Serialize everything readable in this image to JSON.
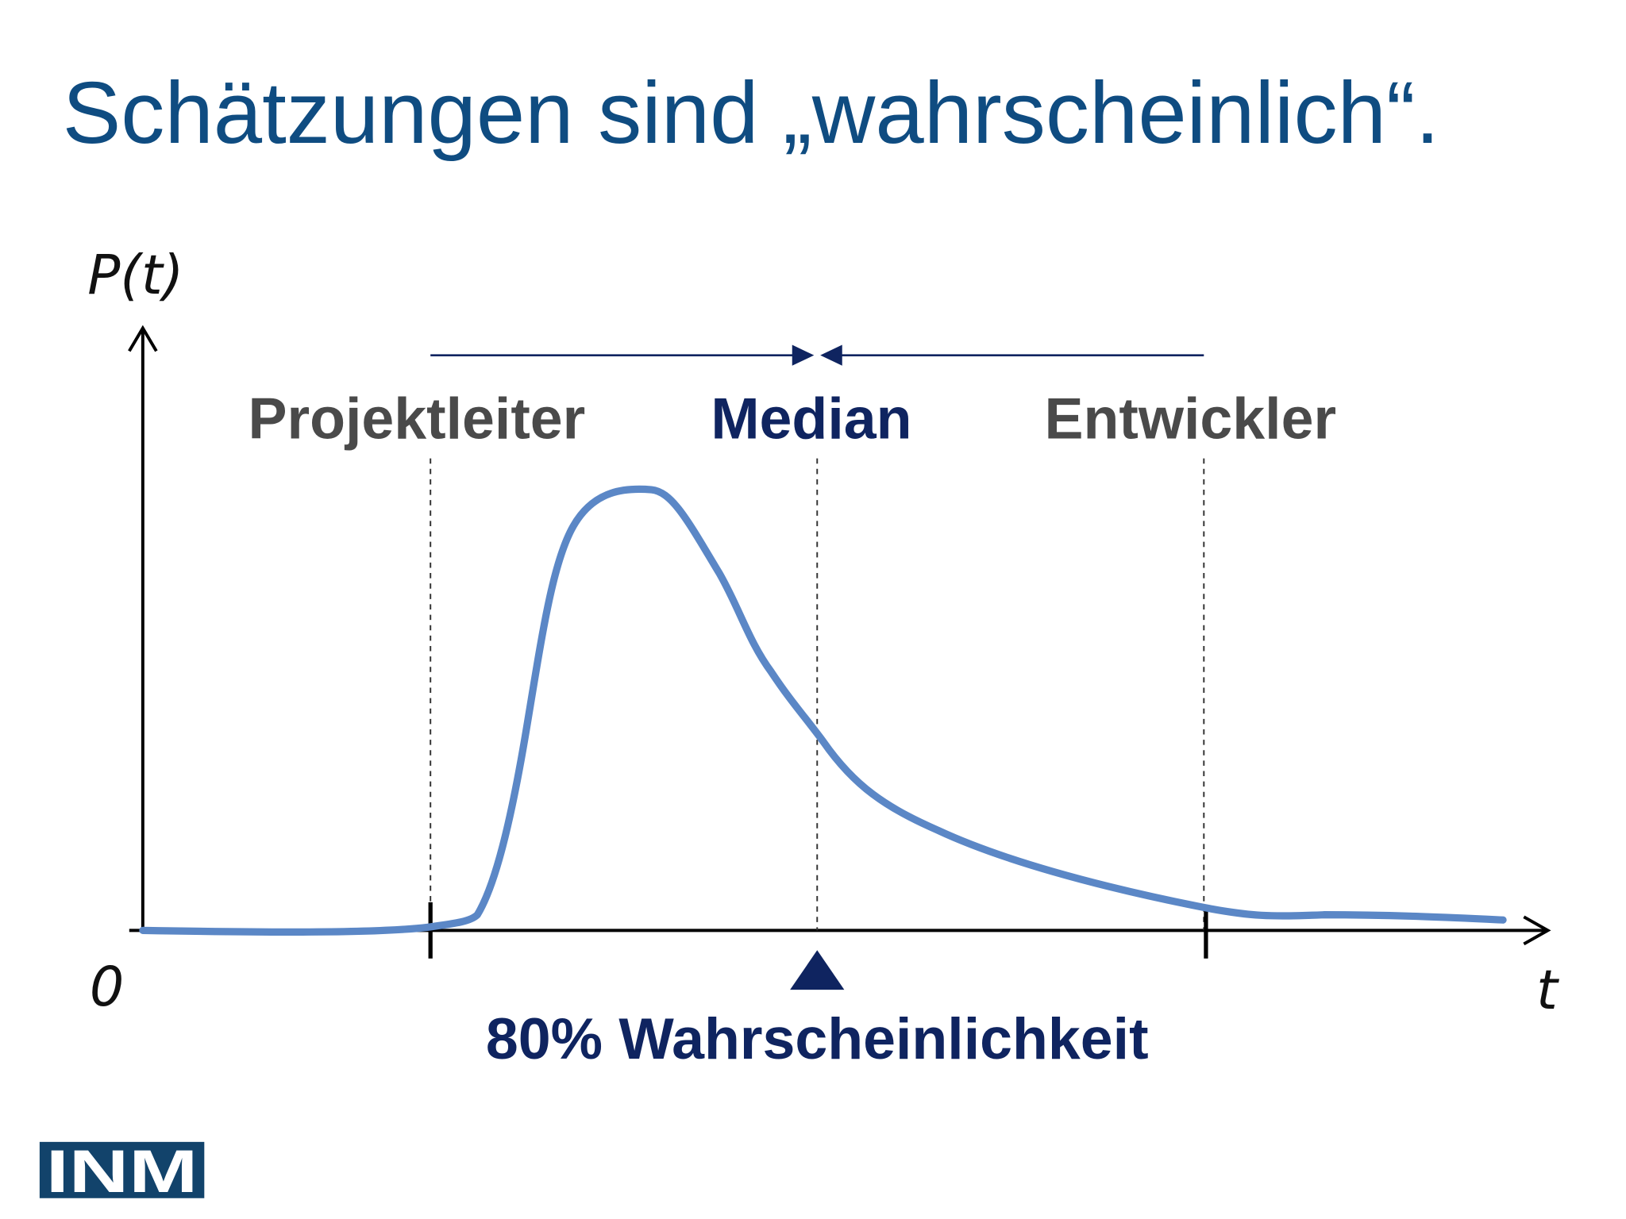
{
  "title": "Schätzungen sind „wahrscheinlich“.",
  "diagram": {
    "y_axis_label": "P(t)",
    "origin_label": "0",
    "x_axis_label": "t",
    "markers": [
      {
        "label": "Projektleiter"
      },
      {
        "label": "Median"
      },
      {
        "label": "Entwickler"
      }
    ],
    "caption": "80% Wahrscheinlichkeit"
  },
  "logo": "INM"
}
